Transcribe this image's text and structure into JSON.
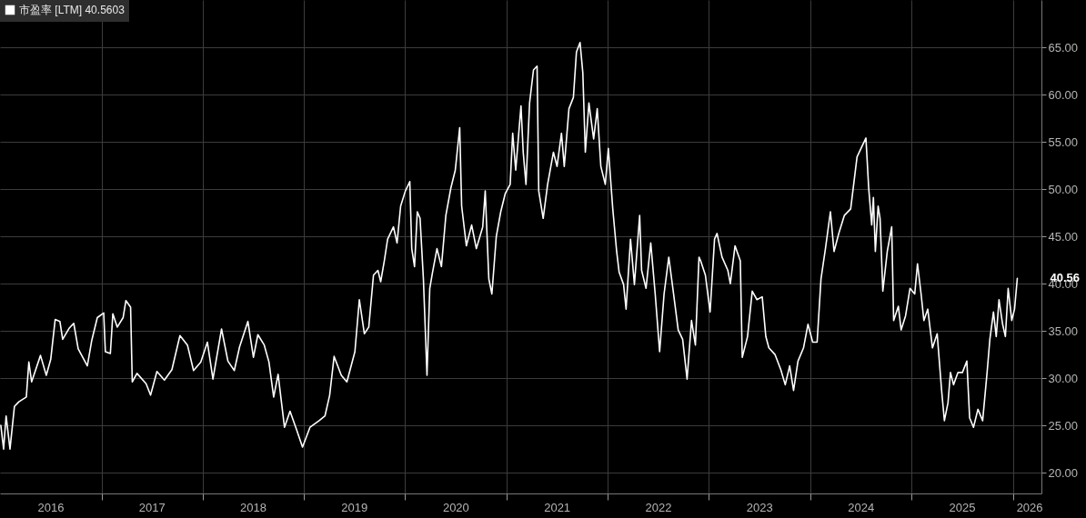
{
  "chart_data": {
    "type": "line",
    "legend": "top left",
    "grid": true,
    "xlim": [
      "2016-01-01",
      "2026-04-14"
    ],
    "ylim": [
      17.8,
      70
    ],
    "xticks": [
      {
        "value": "2016-07-01",
        "label": "2016"
      },
      {
        "value": "2017-01-01",
        "label": null
      },
      {
        "value": "2017-07-01",
        "label": "2017"
      },
      {
        "value": "2018-01-01",
        "label": null
      },
      {
        "value": "2018-07-01",
        "label": "2018"
      },
      {
        "value": "2019-01-01",
        "label": null
      },
      {
        "value": "2019-07-01",
        "label": "2019"
      },
      {
        "value": "2020-01-01",
        "label": null
      },
      {
        "value": "2020-07-01",
        "label": "2020"
      },
      {
        "value": "2021-01-01",
        "label": null
      },
      {
        "value": "2021-07-01",
        "label": "2021"
      },
      {
        "value": "2022-01-01",
        "label": null
      },
      {
        "value": "2022-07-01",
        "label": "2022"
      },
      {
        "value": "2023-01-01",
        "label": null
      },
      {
        "value": "2023-07-01",
        "label": "2023"
      },
      {
        "value": "2024-01-01",
        "label": null
      },
      {
        "value": "2024-07-01",
        "label": "2024"
      },
      {
        "value": "2025-01-01",
        "label": null
      },
      {
        "value": "2025-07-01",
        "label": "2025"
      },
      {
        "value": "2026-01-01",
        "label": null
      },
      {
        "value": "2026-03-01",
        "label": "2026"
      }
    ],
    "yticks": [
      {
        "value": 20,
        "label": "20.00"
      },
      {
        "value": 25,
        "label": "25.00"
      },
      {
        "value": 30,
        "label": "30.00"
      },
      {
        "value": 35,
        "label": "35.00"
      },
      {
        "value": 40,
        "label": "40.00"
      },
      {
        "value": 45,
        "label": "45.00"
      },
      {
        "value": 50,
        "label": "50.00"
      },
      {
        "value": 55,
        "label": "55.00"
      },
      {
        "value": 60,
        "label": "60.00"
      },
      {
        "value": 65,
        "label": "65.00"
      }
    ],
    "annotations": [
      {
        "text": "40.56",
        "x": "2026-01-17",
        "y": 40.56
      }
    ],
    "series": [
      {
        "name": "市盈率 [LTM] 40.5603",
        "color": "#ffffff",
        "x": [
          "2016-01-04",
          "2016-01-14",
          "2016-01-23",
          "2016-02-06",
          "2016-02-22",
          "2016-03-09",
          "2016-04-05",
          "2016-04-14",
          "2016-04-24",
          "2016-05-26",
          "2016-06-16",
          "2016-07-02",
          "2016-07-18",
          "2016-08-04",
          "2016-08-14",
          "2016-09-07",
          "2016-09-23",
          "2016-10-09",
          "2016-11-11",
          "2016-11-27",
          "2016-12-17",
          "2017-01-09",
          "2017-01-15",
          "2017-02-02",
          "2017-02-11",
          "2017-02-27",
          "2017-03-20",
          "2017-03-30",
          "2017-04-16",
          "2017-04-22",
          "2017-05-09",
          "2017-06-11",
          "2017-06-27",
          "2017-07-20",
          "2017-08-16",
          "2017-09-12",
          "2017-10-11",
          "2017-11-07",
          "2017-11-29",
          "2017-12-25",
          "2018-01-18",
          "2018-02-07",
          "2018-03-10",
          "2018-04-02",
          "2018-04-25",
          "2018-05-14",
          "2018-06-13",
          "2018-07-03",
          "2018-07-19",
          "2018-08-11",
          "2018-08-28",
          "2018-09-14",
          "2018-09-30",
          "2018-10-23",
          "2018-11-12",
          "2018-12-05",
          "2018-12-27",
          "2019-01-23",
          "2019-02-25",
          "2019-03-18",
          "2019-04-04",
          "2019-04-20",
          "2019-05-16",
          "2019-06-05",
          "2019-07-04",
          "2019-07-20",
          "2019-08-07",
          "2019-08-23",
          "2019-09-09",
          "2019-09-25",
          "2019-10-05",
          "2019-10-18",
          "2019-10-30",
          "2019-11-20",
          "2019-12-03",
          "2019-12-16",
          "2020-01-02",
          "2020-01-18",
          "2020-01-25",
          "2020-02-04",
          "2020-02-14",
          "2020-02-24",
          "2020-03-07",
          "2020-03-20",
          "2020-03-30",
          "2020-04-09",
          "2020-04-25",
          "2020-05-11",
          "2020-05-27",
          "2020-06-14",
          "2020-06-30",
          "2020-07-16",
          "2020-07-23",
          "2020-08-09",
          "2020-08-28",
          "2020-09-14",
          "2020-10-07",
          "2020-10-16",
          "2020-10-29",
          "2020-11-09",
          "2020-11-25",
          "2020-12-11",
          "2020-12-27",
          "2021-01-14",
          "2021-01-23",
          "2021-02-03",
          "2021-02-22",
          "2021-03-02",
          "2021-03-12",
          "2021-03-25",
          "2021-04-08",
          "2021-04-21",
          "2021-04-27",
          "2021-05-13",
          "2021-05-29",
          "2021-06-19",
          "2021-07-02",
          "2021-07-18",
          "2021-07-28",
          "2021-08-14",
          "2021-08-30",
          "2021-09-10",
          "2021-09-23",
          "2021-10-03",
          "2021-10-12",
          "2021-10-25",
          "2021-11-11",
          "2021-11-24",
          "2021-12-07",
          "2021-12-23",
          "2022-01-03",
          "2022-01-19",
          "2022-02-02",
          "2022-02-11",
          "2022-02-27",
          "2022-03-08",
          "2022-03-24",
          "2022-04-07",
          "2022-04-26",
          "2022-05-03",
          "2022-05-19",
          "2022-06-05",
          "2022-06-21",
          "2022-07-07",
          "2022-07-23",
          "2022-08-09",
          "2022-08-25",
          "2022-09-12",
          "2022-09-28",
          "2022-10-14",
          "2022-10-30",
          "2022-11-13",
          "2022-11-26",
          "2022-12-02",
          "2022-12-19",
          "2023-01-05",
          "2023-01-21",
          "2023-01-30",
          "2023-02-17",
          "2023-03-10",
          "2023-03-19",
          "2023-04-05",
          "2023-04-24",
          "2023-05-01",
          "2023-05-20",
          "2023-06-06",
          "2023-06-23",
          "2023-07-12",
          "2023-07-25",
          "2023-08-05",
          "2023-08-27",
          "2023-09-17",
          "2023-10-03",
          "2023-10-19",
          "2023-11-02",
          "2023-11-18",
          "2023-12-08",
          "2023-12-24",
          "2024-01-10",
          "2024-01-26",
          "2024-02-09",
          "2024-02-25",
          "2024-03-14",
          "2024-03-27",
          "2024-04-13",
          "2024-05-03",
          "2024-05-26",
          "2024-06-18",
          "2024-07-20",
          "2024-07-30",
          "2024-08-10",
          "2024-08-16",
          "2024-08-23",
          "2024-09-02",
          "2024-09-09",
          "2024-09-19",
          "2024-10-05",
          "2024-10-21",
          "2024-10-28",
          "2024-11-14",
          "2024-11-24",
          "2024-12-10",
          "2024-12-26",
          "2025-01-12",
          "2025-01-22",
          "2025-02-04",
          "2025-02-14",
          "2025-02-28",
          "2025-03-17",
          "2025-04-03",
          "2025-04-19",
          "2025-04-29",
          "2025-05-12",
          "2025-05-21",
          "2025-06-01",
          "2025-06-17",
          "2025-07-03",
          "2025-07-19",
          "2025-07-29",
          "2025-08-12",
          "2025-08-28",
          "2025-09-14",
          "2025-09-30",
          "2025-10-10",
          "2025-10-23",
          "2025-11-02",
          "2025-11-12",
          "2025-11-25",
          "2025-12-05",
          "2025-12-15",
          "2025-12-28",
          "2026-01-07",
          "2026-01-17"
        ],
        "values": [
          25,
          22.5,
          26,
          22.5,
          27,
          27.5,
          28,
          31.7,
          29.6,
          32.4,
          30.3,
          32,
          36.2,
          36,
          34.1,
          35.3,
          35.8,
          33.1,
          31.3,
          34,
          36.4,
          36.9,
          32.8,
          32.6,
          36.8,
          35.4,
          36.4,
          38.2,
          37.5,
          29.6,
          30.5,
          29.4,
          28.2,
          30.7,
          29.8,
          30.9,
          34.5,
          33.5,
          30.8,
          31.7,
          33.8,
          29.9,
          35.2,
          31.8,
          30.8,
          33.3,
          36,
          32.2,
          34.6,
          33.5,
          31.7,
          28,
          30.4,
          24.8,
          26.5,
          24.6,
          22.7,
          24.8,
          25.5,
          26,
          28.2,
          32.3,
          30.3,
          29.6,
          32.8,
          38.3,
          34.7,
          35.4,
          40.9,
          41.4,
          40.2,
          42.4,
          44.7,
          46,
          44.3,
          48.2,
          49.8,
          50.8,
          43.7,
          41.8,
          47.6,
          46.9,
          40.5,
          30.3,
          39.5,
          41.2,
          43.7,
          41.8,
          47.2,
          50.1,
          52,
          56.5,
          48.2,
          44,
          46.2,
          43.7,
          46,
          49.8,
          40.5,
          38.9,
          45,
          47.6,
          49.5,
          50.5,
          55.9,
          52,
          58.8,
          53.9,
          50.5,
          59.1,
          62.6,
          63,
          49.8,
          46.9,
          50.5,
          53.9,
          52.4,
          55.9,
          52.4,
          58.5,
          59.7,
          64.5,
          65.5,
          62.3,
          53.9,
          59.1,
          55.3,
          58.5,
          52.4,
          50.5,
          54.3,
          47.9,
          43.4,
          41.2,
          39.9,
          37.3,
          44.7,
          39.9,
          47.2,
          41.4,
          39.5,
          44.3,
          38.9,
          32.8,
          38.9,
          42.8,
          39.2,
          35.1,
          34.1,
          29.9,
          36.1,
          33.5,
          42.8,
          42.4,
          40.9,
          37,
          44.7,
          45.3,
          42.8,
          41.4,
          40,
          44,
          42.4,
          32.2,
          34.4,
          39.2,
          38.3,
          38.6,
          34.4,
          33.2,
          32.5,
          30.9,
          29.3,
          31.3,
          28.7,
          31.8,
          33.2,
          35.7,
          33.8,
          33.8,
          40.5,
          43.7,
          47.6,
          43.4,
          45.3,
          47.2,
          47.9,
          53.4,
          55.4,
          50.1,
          46.2,
          49.1,
          43.4,
          48.2,
          46.9,
          39.2,
          43.4,
          46,
          36.1,
          37.6,
          35.1,
          36.6,
          39.5,
          38.9,
          42.1,
          38.9,
          36.1,
          37.3,
          33.2,
          34.7,
          28.7,
          25.5,
          27.4,
          30.6,
          29.3,
          30.6,
          30.6,
          31.8,
          25.8,
          24.8,
          26.7,
          25.5,
          30.6,
          34.1,
          37,
          34.4,
          38.3,
          35.7,
          34.4,
          39.5,
          36.1,
          37.3,
          40.56
        ]
      }
    ]
  }
}
